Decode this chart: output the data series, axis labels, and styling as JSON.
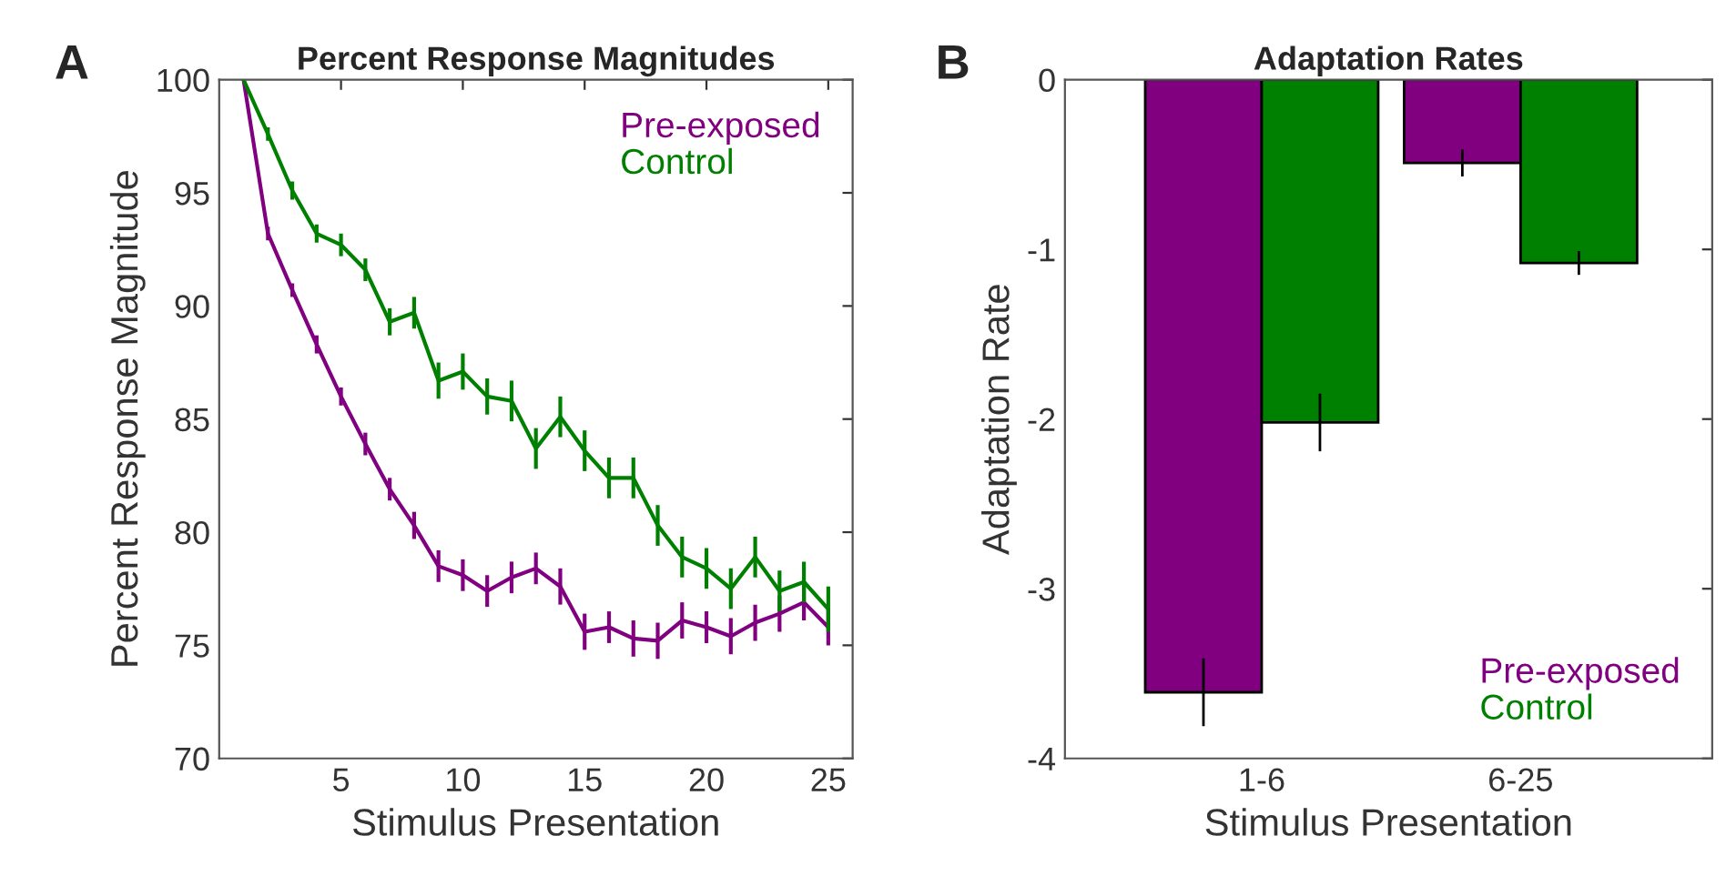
{
  "chart_data": [
    {
      "type": "line",
      "title": "Percent Response Magnitudes",
      "xlabel": "Stimulus Presentation",
      "ylabel": "Percent Response Magnitude",
      "annotations": [
        "A"
      ],
      "x": [
        1,
        2,
        3,
        4,
        5,
        6,
        7,
        8,
        9,
        10,
        11,
        12,
        13,
        14,
        15,
        16,
        17,
        18,
        19,
        20,
        21,
        22,
        23,
        24,
        25
      ],
      "series": [
        {
          "name": "Pre-exposed",
          "color": "#800080",
          "values": [
            100,
            93.2,
            90.7,
            88.3,
            86.0,
            83.9,
            81.9,
            80.3,
            78.5,
            78.1,
            77.4,
            78.0,
            78.4,
            77.6,
            75.6,
            75.8,
            75.3,
            75.2,
            76.1,
            75.8,
            75.4,
            76.0,
            76.4,
            76.9,
            75.8
          ],
          "errors": [
            null,
            0.3,
            0.3,
            0.4,
            0.4,
            0.5,
            0.5,
            0.6,
            0.7,
            0.7,
            0.7,
            0.7,
            0.7,
            0.8,
            0.8,
            0.7,
            0.8,
            0.8,
            0.8,
            0.7,
            0.8,
            0.8,
            0.8,
            0.8,
            0.8
          ]
        },
        {
          "name": "Control",
          "color": "#008000",
          "values": [
            100,
            97.6,
            95.1,
            93.2,
            92.7,
            91.6,
            89.3,
            89.7,
            86.7,
            87.1,
            86.0,
            85.8,
            83.7,
            85.1,
            83.6,
            82.4,
            82.4,
            80.3,
            78.9,
            78.4,
            77.5,
            78.9,
            77.4,
            77.8,
            76.6
          ],
          "errors": [
            null,
            0.3,
            0.4,
            0.4,
            0.5,
            0.5,
            0.6,
            0.7,
            0.8,
            0.8,
            0.8,
            0.9,
            0.9,
            0.9,
            0.9,
            0.9,
            0.9,
            0.9,
            0.9,
            0.9,
            0.9,
            0.9,
            0.9,
            0.9,
            1.0
          ]
        }
      ],
      "xlim": [
        0,
        26
      ],
      "xticks": [
        5,
        10,
        15,
        20,
        25
      ],
      "ylim": [
        70,
        100
      ],
      "yticks": [
        70,
        75,
        80,
        85,
        90,
        95,
        100
      ],
      "legend": "top right",
      "grid": false,
      "marker": "none",
      "line_style": "solid"
    },
    {
      "type": "bar",
      "title": "Adaptation Rates",
      "xlabel": "Stimulus Presentation",
      "ylabel": "Adaptation Rate",
      "annotations": [
        "B"
      ],
      "categories": [
        "1-6",
        "6-25"
      ],
      "series": [
        {
          "name": "Pre-exposed",
          "color": "#800080",
          "values": [
            -3.61,
            -0.49
          ],
          "errors": [
            0.2,
            0.08
          ]
        },
        {
          "name": "Control",
          "color": "#008000",
          "values": [
            -2.02,
            -1.08
          ],
          "errors": [
            0.17,
            0.07
          ]
        }
      ],
      "ylim": [
        -4,
        0
      ],
      "yticks": [
        -4,
        -3,
        -2,
        -1,
        0
      ],
      "legend": "bottom right",
      "grid": false
    }
  ]
}
